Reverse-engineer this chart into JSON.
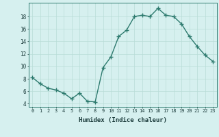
{
  "x": [
    0,
    1,
    2,
    3,
    4,
    5,
    6,
    7,
    8,
    9,
    10,
    11,
    12,
    13,
    14,
    15,
    16,
    17,
    18,
    19,
    20,
    21,
    22,
    23
  ],
  "y": [
    8.2,
    7.2,
    6.5,
    6.2,
    5.7,
    4.8,
    5.7,
    4.4,
    4.3,
    9.8,
    11.5,
    14.8,
    15.8,
    18.0,
    18.2,
    18.0,
    19.3,
    18.2,
    18.0,
    16.8,
    14.8,
    13.2,
    11.8,
    10.8
  ],
  "xlabel": "Humidex (Indice chaleur)",
  "ylim": [
    3.5,
    20.2
  ],
  "xlim": [
    -0.5,
    23.5
  ],
  "yticks": [
    4,
    6,
    8,
    10,
    12,
    14,
    16,
    18
  ],
  "xticks": [
    0,
    1,
    2,
    3,
    4,
    5,
    6,
    7,
    8,
    9,
    10,
    11,
    12,
    13,
    14,
    15,
    16,
    17,
    18,
    19,
    20,
    21,
    22,
    23
  ],
  "line_color": "#2d7a6e",
  "bg_color": "#d6f0ef",
  "grid_color": "#b8ddd8",
  "marker": "+",
  "marker_size": 4,
  "line_width": 1.0
}
